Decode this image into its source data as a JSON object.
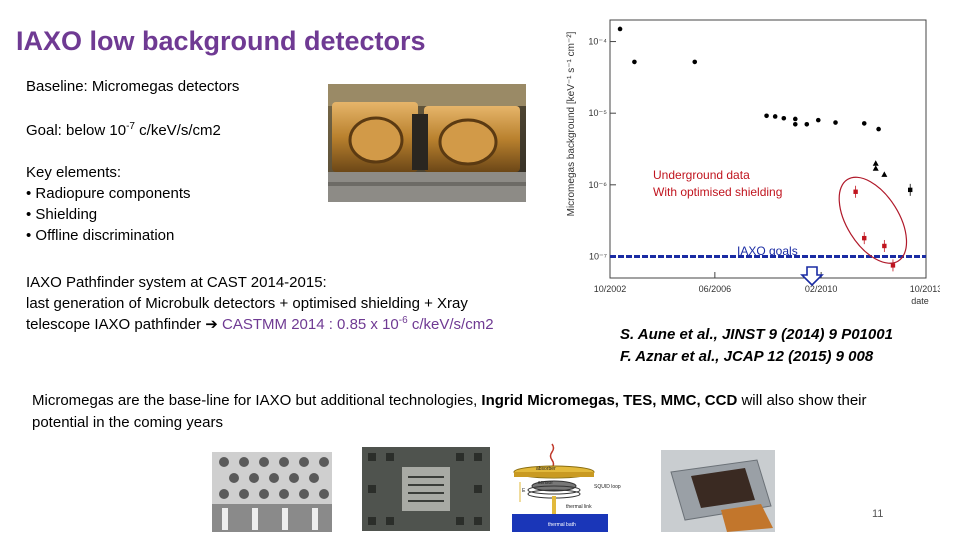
{
  "title": "IAXO low background detectors",
  "baseline": "Baseline: Micromegas detectors",
  "goal": {
    "prefix": "Goal: below 10",
    "exp": "-7",
    "suffix": " c/keV/s/cm2"
  },
  "key_elements": {
    "heading": "Key elements:",
    "items": [
      "• Radiopure components",
      "• Shielding",
      "• Offline discrimination"
    ]
  },
  "pathfinder": {
    "line1": "IAXO Pathfinder system at CAST 2014-2015:",
    "line2": "last generation of Microbulk detectors + optimised shielding + Xray",
    "line3_prefix": "telescope IAXO pathfinder ",
    "arrow": "➔",
    "line3_hl": " CASTMM 2014 : 0.85 x 10",
    "line3_exp": "-6",
    "line3_suffix": " c/keV/s/cm2"
  },
  "chart_data": {
    "type": "scatter",
    "ylabel": "Micromegas background [keV⁻¹ s⁻¹ cm⁻²]",
    "xlabel": "date",
    "log_y": true,
    "ylim": [
      5e-08,
      0.0002
    ],
    "x_ticks": [
      "10/2002",
      "06/2006",
      "02/2010",
      "10/2013"
    ],
    "y_ticks": [
      "10⁻⁴",
      "10⁻⁵",
      "10⁻⁶",
      "10⁻⁷"
    ],
    "series": [
      {
        "marker": "circle",
        "color": "#000000",
        "x": [
          2003.1,
          2003.6,
          2005.7,
          2008.2,
          2008.5,
          2008.8,
          2009.2,
          2009.6,
          2009.2,
          2010.0,
          2010.6,
          2011.6,
          2012.1
        ],
        "y": [
          0.00015,
          5.2e-05,
          5.2e-05,
          9.2e-06,
          9e-06,
          8.5e-06,
          7e-06,
          7e-06,
          8.3e-06,
          8e-06,
          7.4e-06,
          7.2e-06,
          6e-06
        ]
      },
      {
        "marker": "triangle",
        "color": "#000000",
        "x": [
          2012.0,
          2012.0,
          2012.3
        ],
        "y": [
          2e-06,
          1.7e-06,
          1.4e-06
        ]
      },
      {
        "marker": "square",
        "color": "#c0141e",
        "x": [
          2011.3,
          2011.6,
          2012.3,
          2012.6
        ],
        "y": [
          8e-07,
          1.8e-07,
          1.4e-07,
          7.5e-08
        ]
      },
      {
        "marker": "square",
        "color": "#000000",
        "x": [
          2013.2
        ],
        "y": [
          8.5e-07
        ]
      }
    ],
    "goal_line": 1e-07,
    "annotations": [
      "Underground data",
      "With optimised shielding",
      "IAXO goals"
    ]
  },
  "references": [
    "S. Aune et al., JINST 9 (2014) 9 P01001",
    "F. Aznar et al., JCAP 12  (2015) 9 008"
  ],
  "bottom_text": {
    "part1": "Micromegas are the base-line for IAXO but additional technologies, ",
    "bold": "Ingrid Micromegas, TES, MMC, CCD",
    "part2": "  will also  show their potential in the coming years"
  },
  "tes_labels": [
    "absorber",
    "sensor",
    "SQUID loop",
    "thermal link",
    "thermal bath",
    "E"
  ],
  "page_number": "11",
  "colors": {
    "title": "#6f3a93",
    "highlight": "#6f3a93",
    "red": "#c0141e",
    "goal_line": "#1a2ba3",
    "ellipse": "#b0192a"
  }
}
